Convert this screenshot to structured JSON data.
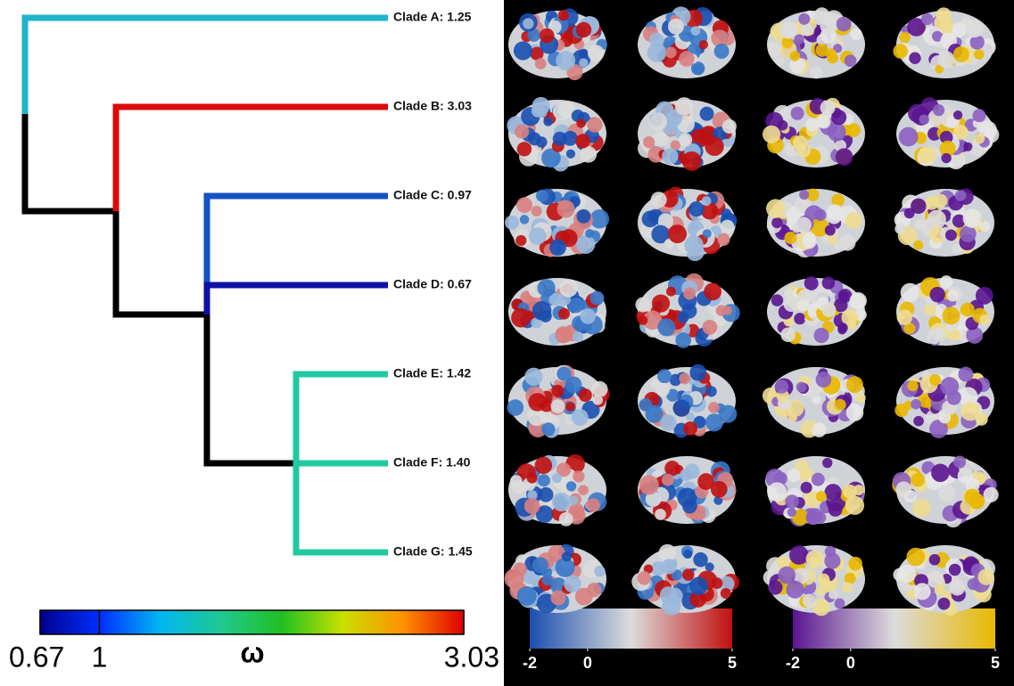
{
  "tree": {
    "clades": [
      {
        "label": "Clade A: 1.25",
        "color": "#1fb4cc"
      },
      {
        "label": "Clade B: 3.03",
        "color": "#dd0a0a"
      },
      {
        "label": "Clade C: 0.97",
        "color": "#1552c4"
      },
      {
        "label": "Clade D: 0.67",
        "color": "#1010a8"
      },
      {
        "label": "Clade E: 1.42",
        "color": "#22c9a0"
      },
      {
        "label": "Clade F: 1.40",
        "color": "#22c9a0"
      },
      {
        "label": "Clade G: 1.45",
        "color": "#22c9a0"
      }
    ]
  },
  "omega_scale": {
    "title": "ω",
    "ticks": [
      0.67,
      1,
      3.03
    ],
    "colors": [
      "#00008f",
      "#0030ff",
      "#00b8f0",
      "#20c890",
      "#20c020",
      "#c8e000",
      "#ff9000",
      "#e00000"
    ]
  },
  "surface_scales": [
    {
      "ticks": [
        -2,
        0,
        5
      ],
      "colors": [
        "#1a4fb0",
        "#dcdcdc",
        "#c01010"
      ]
    },
    {
      "ticks": [
        -2,
        0,
        5
      ],
      "colors": [
        "#5a1590",
        "#dcdcdc",
        "#e8b800"
      ]
    }
  ]
}
